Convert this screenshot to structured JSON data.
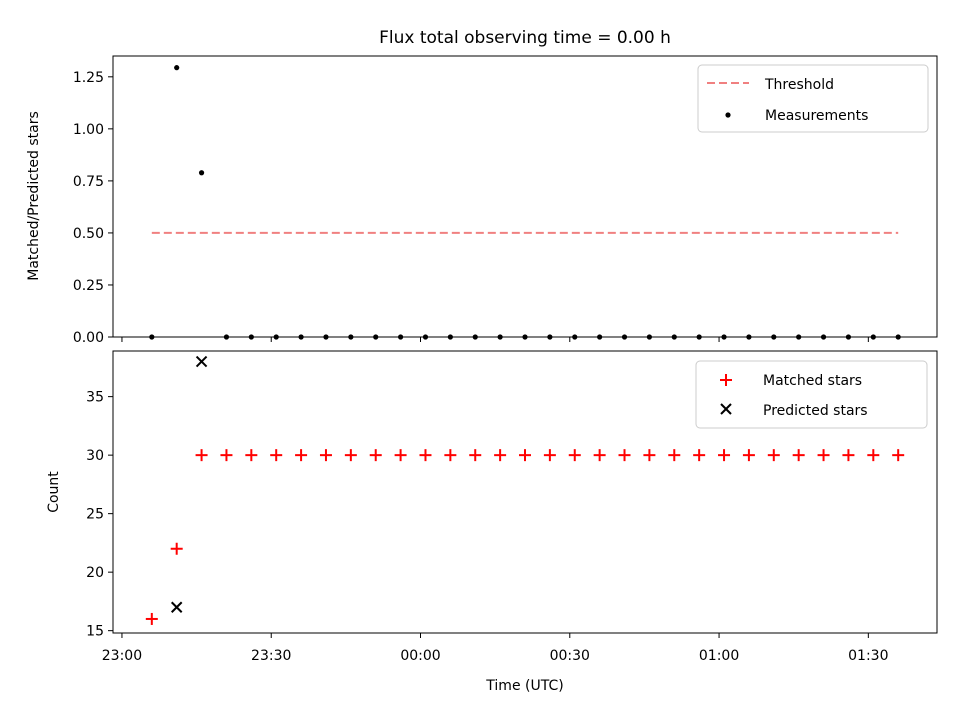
{
  "chart_data": [
    {
      "type": "scatter",
      "title": "Flux total observing time = 0.00 h",
      "xlabel": "",
      "ylabel": "Matched/Predicted stars",
      "ylim": [
        0,
        1.35
      ],
      "yticks": [
        0.0,
        0.25,
        0.5,
        0.75,
        1.0,
        1.25
      ],
      "ytick_labels": [
        "0.00",
        "0.25",
        "0.50",
        "0.75",
        "1.00",
        "1.25"
      ],
      "legend_position": "upper right",
      "series": [
        {
          "name": "Threshold",
          "kind": "line",
          "style": "dashed",
          "color": "#f08080",
          "x": [
            6,
            156
          ],
          "y": [
            0.5,
            0.5
          ]
        },
        {
          "name": "Measurements",
          "kind": "scatter",
          "marker": "dot",
          "color": "#000000",
          "x": [
            6,
            11,
            16,
            21,
            26,
            31,
            36,
            41,
            46,
            51,
            56,
            61,
            66,
            71,
            76,
            81,
            86,
            91,
            96,
            101,
            106,
            111,
            116,
            121,
            126,
            131,
            136,
            141,
            146,
            151,
            156
          ],
          "y": [
            0,
            1.294,
            0.789,
            0,
            0,
            0,
            0,
            0,
            0,
            0,
            0,
            0,
            0,
            0,
            0,
            0,
            0,
            0,
            0,
            0,
            0,
            0,
            0,
            0,
            0,
            0,
            0,
            0,
            0,
            0,
            0
          ]
        }
      ]
    },
    {
      "type": "scatter",
      "title": "",
      "xlabel": "Time (UTC)",
      "ylabel": "Count",
      "ylim": [
        14.8,
        38.9
      ],
      "yticks": [
        15,
        20,
        25,
        30,
        35
      ],
      "ytick_labels": [
        "15",
        "20",
        "25",
        "30",
        "35"
      ],
      "x_unit": "minutes after 23:00 UTC",
      "xlim": [
        -1.8,
        163.8
      ],
      "xticks": [
        0,
        30,
        60,
        90,
        120,
        150
      ],
      "xtick_labels": [
        "23:00",
        "23:30",
        "00:00",
        "00:30",
        "01:00",
        "01:30"
      ],
      "legend_position": "upper right",
      "series": [
        {
          "name": "Matched stars",
          "marker": "plus",
          "color": "#ff0000",
          "x": [
            6,
            11,
            16,
            21,
            26,
            31,
            36,
            41,
            46,
            51,
            56,
            61,
            66,
            71,
            76,
            81,
            86,
            91,
            96,
            101,
            106,
            111,
            116,
            121,
            126,
            131,
            136,
            141,
            146,
            151,
            156
          ],
          "y": [
            16,
            22,
            30,
            30,
            30,
            30,
            30,
            30,
            30,
            30,
            30,
            30,
            30,
            30,
            30,
            30,
            30,
            30,
            30,
            30,
            30,
            30,
            30,
            30,
            30,
            30,
            30,
            30,
            30,
            30,
            30
          ]
        },
        {
          "name": "Predicted stars",
          "marker": "x",
          "color": "#000000",
          "x": [
            11,
            16
          ],
          "y": [
            17,
            38
          ]
        }
      ]
    }
  ]
}
